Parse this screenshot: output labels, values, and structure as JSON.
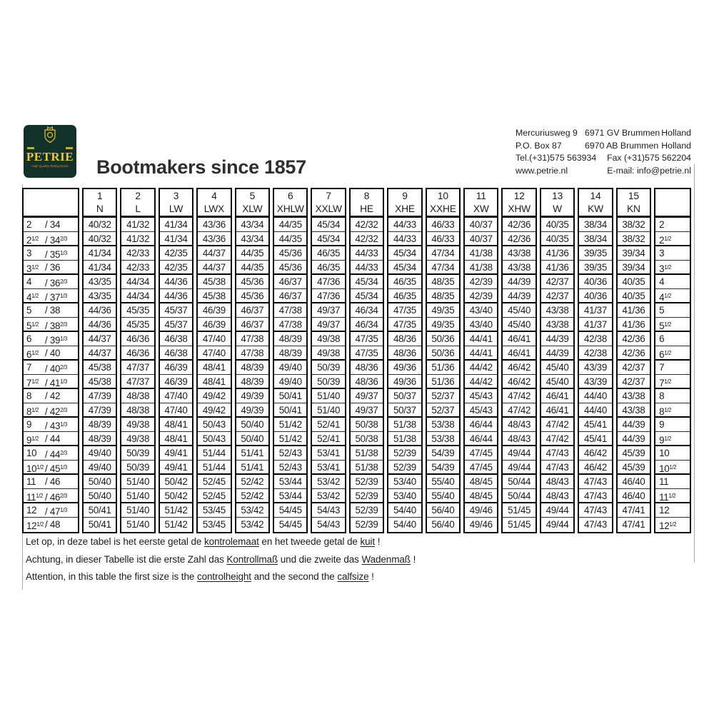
{
  "colors": {
    "logo_green": "#123129",
    "gold": "#e8c63d",
    "tagline": "#d2872e",
    "table_border": "#000000"
  },
  "header": {
    "logo": {
      "brand": "PETRIE",
      "tagline": "High Quality Riding Boots"
    },
    "title": "Bootmakers since 1857",
    "address": {
      "l1a": "Mercuriusweg 9",
      "l1b": "6971 GV Brummen",
      "l1c": "Holland",
      "l2a": "P.O. Box 87",
      "l2b": "6970 AB Brummen",
      "l2c": "Holland",
      "l3a": "Tel.(+31)575 563934",
      "l3b": "Fax (+31)575 562204",
      "l4a": "www.petrie.nl",
      "l4b": "E-mail: info@petrie.nl"
    }
  },
  "table": {
    "columns": [
      {
        "num": "1",
        "code": "N"
      },
      {
        "num": "2",
        "code": "L"
      },
      {
        "num": "3",
        "code": "LW"
      },
      {
        "num": "4",
        "code": "LWX"
      },
      {
        "num": "5",
        "code": "XLW"
      },
      {
        "num": "6",
        "code": "XHLW"
      },
      {
        "num": "7",
        "code": "XXLW"
      },
      {
        "num": "8",
        "code": "HE"
      },
      {
        "num": "9",
        "code": "XHE"
      },
      {
        "num": "10",
        "code": "XXHE"
      },
      {
        "num": "11",
        "code": "XW"
      },
      {
        "num": "12",
        "code": "XHW"
      },
      {
        "num": "13",
        "code": "W"
      },
      {
        "num": "14",
        "code": "KW"
      },
      {
        "num": "15",
        "code": "KN"
      }
    ],
    "rows": [
      {
        "l": [
          "2",
          "",
          "34",
          ""
        ],
        "r": [
          "2",
          ""
        ],
        "v": [
          "40/32",
          "41/32",
          "41/34",
          "43/36",
          "43/34",
          "44/35",
          "45/34",
          "42/32",
          "44/33",
          "46/33",
          "40/37",
          "42/36",
          "40/35",
          "38/34",
          "38/32"
        ]
      },
      {
        "l": [
          "2",
          "1/2",
          "34",
          "2/3"
        ],
        "r": [
          "2",
          "1/2"
        ],
        "v": [
          "40/32",
          "41/32",
          "41/34",
          "43/36",
          "43/34",
          "44/35",
          "45/34",
          "42/32",
          "44/33",
          "46/33",
          "40/37",
          "42/36",
          "40/35",
          "38/34",
          "38/32"
        ]
      },
      {
        "l": [
          "3",
          "",
          "35",
          "1/3"
        ],
        "r": [
          "3",
          ""
        ],
        "v": [
          "41/34",
          "42/33",
          "42/35",
          "44/37",
          "44/35",
          "45/36",
          "46/35",
          "44/33",
          "45/34",
          "47/34",
          "41/38",
          "43/38",
          "41/36",
          "39/35",
          "39/34"
        ]
      },
      {
        "l": [
          "3",
          "1/2",
          "36",
          ""
        ],
        "r": [
          "3",
          "1/2"
        ],
        "v": [
          "41/34",
          "42/33",
          "42/35",
          "44/37",
          "44/35",
          "45/36",
          "46/35",
          "44/33",
          "45/34",
          "47/34",
          "41/38",
          "43/38",
          "41/36",
          "39/35",
          "39/34"
        ]
      },
      {
        "l": [
          "4",
          "",
          "36",
          "2/3"
        ],
        "r": [
          "4",
          ""
        ],
        "v": [
          "43/35",
          "44/34",
          "44/36",
          "45/38",
          "45/36",
          "46/37",
          "47/36",
          "45/34",
          "46/35",
          "48/35",
          "42/39",
          "44/39",
          "42/37",
          "40/36",
          "40/35"
        ]
      },
      {
        "l": [
          "4",
          "1/2",
          "37",
          "1/3"
        ],
        "r": [
          "4",
          "1/2"
        ],
        "v": [
          "43/35",
          "44/34",
          "44/36",
          "45/38",
          "45/36",
          "46/37",
          "47/36",
          "45/34",
          "46/35",
          "48/35",
          "42/39",
          "44/39",
          "42/37",
          "40/36",
          "40/35"
        ]
      },
      {
        "l": [
          "5",
          "",
          "38",
          ""
        ],
        "r": [
          "5",
          ""
        ],
        "v": [
          "44/36",
          "45/35",
          "45/37",
          "46/39",
          "46/37",
          "47/38",
          "49/37",
          "46/34",
          "47/35",
          "49/35",
          "43/40",
          "45/40",
          "43/38",
          "41/37",
          "41/36"
        ]
      },
      {
        "l": [
          "5",
          "1/2",
          "38",
          "2/3"
        ],
        "r": [
          "5",
          "1/2"
        ],
        "v": [
          "44/36",
          "45/35",
          "45/37",
          "46/39",
          "46/37",
          "47/38",
          "49/37",
          "46/34",
          "47/35",
          "49/35",
          "43/40",
          "45/40",
          "43/38",
          "41/37",
          "41/36"
        ]
      },
      {
        "l": [
          "6",
          "",
          "39",
          "1/3"
        ],
        "r": [
          "6",
          ""
        ],
        "v": [
          "44/37",
          "46/36",
          "46/38",
          "47/40",
          "47/38",
          "48/39",
          "49/38",
          "47/35",
          "48/36",
          "50/36",
          "44/41",
          "46/41",
          "44/39",
          "42/38",
          "42/36"
        ]
      },
      {
        "l": [
          "6",
          "1/2",
          "40",
          ""
        ],
        "r": [
          "6",
          "1/2"
        ],
        "v": [
          "44/37",
          "46/36",
          "46/38",
          "47/40",
          "47/38",
          "48/39",
          "49/38",
          "47/35",
          "48/36",
          "50/36",
          "44/41",
          "46/41",
          "44/39",
          "42/38",
          "42/36"
        ]
      },
      {
        "l": [
          "7",
          "",
          "40",
          "2/3"
        ],
        "r": [
          "7",
          ""
        ],
        "v": [
          "45/38",
          "47/37",
          "46/39",
          "48/41",
          "48/39",
          "49/40",
          "50/39",
          "48/36",
          "49/36",
          "51/36",
          "44/42",
          "46/42",
          "45/40",
          "43/39",
          "42/37"
        ]
      },
      {
        "l": [
          "7",
          "1/2",
          "41",
          "1/3"
        ],
        "r": [
          "7",
          "1/2"
        ],
        "v": [
          "45/38",
          "47/37",
          "46/39",
          "48/41",
          "48/39",
          "49/40",
          "50/39",
          "48/36",
          "49/36",
          "51/36",
          "44/42",
          "46/42",
          "45/40",
          "43/39",
          "42/37"
        ]
      },
      {
        "l": [
          "8",
          "",
          "42",
          ""
        ],
        "r": [
          "8",
          ""
        ],
        "v": [
          "47/39",
          "48/38",
          "47/40",
          "49/42",
          "49/39",
          "50/41",
          "51/40",
          "49/37",
          "50/37",
          "52/37",
          "45/43",
          "47/42",
          "46/41",
          "44/40",
          "43/38"
        ]
      },
      {
        "l": [
          "8",
          "1/2",
          "42",
          "2/3"
        ],
        "r": [
          "8",
          "1/2"
        ],
        "v": [
          "47/39",
          "48/38",
          "47/40",
          "49/42",
          "49/39",
          "50/41",
          "51/40",
          "49/37",
          "50/37",
          "52/37",
          "45/43",
          "47/42",
          "46/41",
          "44/40",
          "43/38"
        ]
      },
      {
        "l": [
          "9",
          "",
          "43",
          "1/3"
        ],
        "r": [
          "9",
          ""
        ],
        "v": [
          "48/39",
          "49/38",
          "48/41",
          "50/43",
          "50/40",
          "51/42",
          "52/41",
          "50/38",
          "51/38",
          "53/38",
          "46/44",
          "48/43",
          "47/42",
          "45/41",
          "44/39"
        ]
      },
      {
        "l": [
          "9",
          "1/2",
          "44",
          ""
        ],
        "r": [
          "9",
          "1/2"
        ],
        "v": [
          "48/39",
          "49/38",
          "48/41",
          "50/43",
          "50/40",
          "51/42",
          "52/41",
          "50/38",
          "51/38",
          "53/38",
          "46/44",
          "48/43",
          "47/42",
          "45/41",
          "44/39"
        ]
      },
      {
        "l": [
          "10",
          "",
          "44",
          "2/3"
        ],
        "r": [
          "10",
          ""
        ],
        "v": [
          "49/40",
          "50/39",
          "49/41",
          "51/44",
          "51/41",
          "52/43",
          "53/41",
          "51/38",
          "52/39",
          "54/39",
          "47/45",
          "49/44",
          "47/43",
          "46/42",
          "45/39"
        ]
      },
      {
        "l": [
          "10",
          "1/2",
          "45",
          "1/3"
        ],
        "r": [
          "10",
          "1/2"
        ],
        "v": [
          "49/40",
          "50/39",
          "49/41",
          "51/44",
          "51/41",
          "52/43",
          "53/41",
          "51/38",
          "52/39",
          "54/39",
          "47/45",
          "49/44",
          "47/43",
          "46/42",
          "45/39"
        ]
      },
      {
        "l": [
          "11",
          "",
          "46",
          ""
        ],
        "r": [
          "11",
          ""
        ],
        "v": [
          "50/40",
          "51/40",
          "50/42",
          "52/45",
          "52/42",
          "53/44",
          "53/42",
          "52/39",
          "53/40",
          "55/40",
          "48/45",
          "50/44",
          "48/43",
          "47/43",
          "46/40"
        ]
      },
      {
        "l": [
          "11",
          "1/2",
          "46",
          "2/3"
        ],
        "r": [
          "11",
          "1/2"
        ],
        "v": [
          "50/40",
          "51/40",
          "50/42",
          "52/45",
          "52/42",
          "53/44",
          "53/42",
          "52/39",
          "53/40",
          "55/40",
          "48/45",
          "50/44",
          "48/43",
          "47/43",
          "46/40"
        ]
      },
      {
        "l": [
          "12",
          "",
          "47",
          "1/3"
        ],
        "r": [
          "12",
          ""
        ],
        "v": [
          "50/41",
          "51/40",
          "51/42",
          "53/45",
          "53/42",
          "54/45",
          "54/43",
          "52/39",
          "54/40",
          "56/40",
          "49/46",
          "51/45",
          "49/44",
          "47/43",
          "47/41"
        ]
      },
      {
        "l": [
          "12",
          "1/2",
          "48",
          ""
        ],
        "r": [
          "12",
          "1/2"
        ],
        "v": [
          "50/41",
          "51/40",
          "51/42",
          "53/45",
          "53/42",
          "54/45",
          "54/43",
          "52/39",
          "54/40",
          "56/40",
          "49/46",
          "51/45",
          "49/44",
          "47/43",
          "47/41"
        ]
      }
    ]
  },
  "notes": [
    [
      {
        "t": "Let op, in deze tabel is het eerste getal de ",
        "u": false
      },
      {
        "t": "kontrolemaat",
        "u": true
      },
      {
        "t": " en het tweede getal de ",
        "u": false
      },
      {
        "t": "kuit",
        "u": true
      },
      {
        "t": " !",
        "u": false
      }
    ],
    [
      {
        "t": "Achtung, in dieser Tabelle ist die erste Zahl das ",
        "u": false
      },
      {
        "t": "Kontrollmaß",
        "u": true
      },
      {
        "t": " und die zweite das ",
        "u": false
      },
      {
        "t": "Wadenmaß",
        "u": true
      },
      {
        "t": " !",
        "u": false
      }
    ],
    [
      {
        "t": "Attention, in this table the first size is the ",
        "u": false
      },
      {
        "t": "controlheight",
        "u": true
      },
      {
        "t": " and the second the ",
        "u": false
      },
      {
        "t": "calfsize",
        "u": true
      },
      {
        "t": " !",
        "u": false
      }
    ]
  ]
}
